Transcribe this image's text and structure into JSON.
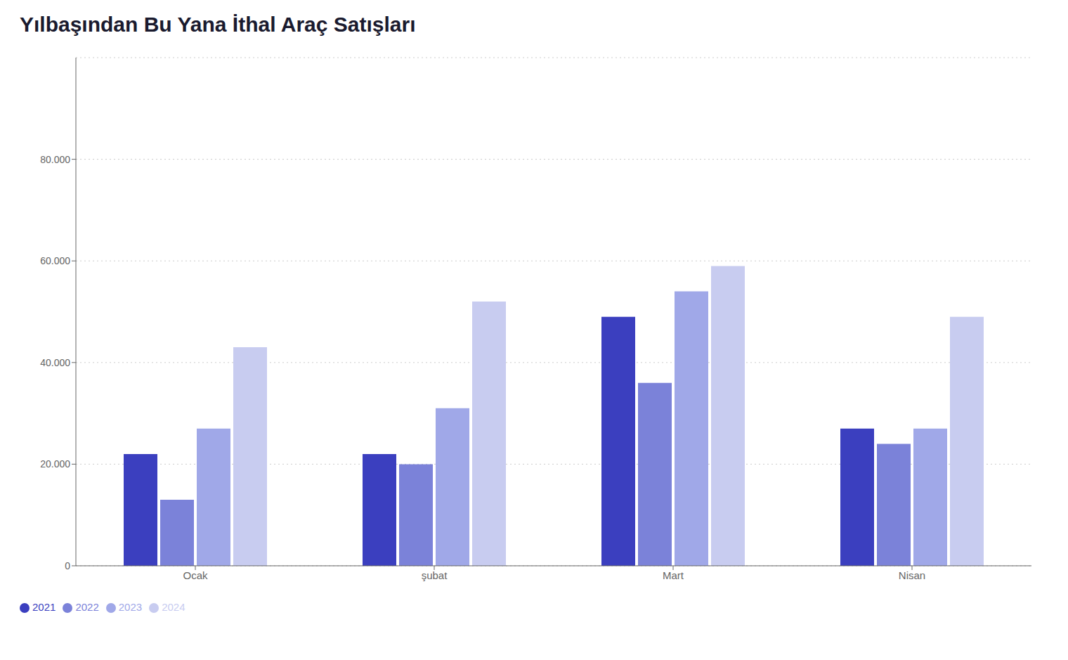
{
  "chart_data": {
    "type": "bar",
    "title": "Yılbaşından Bu Yana İthal Araç Satışları",
    "categories": [
      "Ocak",
      "şubat",
      "Mart",
      "Nisan"
    ],
    "series": [
      {
        "name": "2021",
        "color": "#3B3FBF",
        "values": [
          22000,
          22000,
          49000,
          27000
        ]
      },
      {
        "name": "2022",
        "color": "#7B82D9",
        "values": [
          13000,
          20000,
          36000,
          24000
        ]
      },
      {
        "name": "2023",
        "color": "#A0A8E8",
        "values": [
          27000,
          31000,
          54000,
          27000
        ]
      },
      {
        "name": "2024",
        "color": "#C8CCF0",
        "values": [
          43000,
          52000,
          59000,
          49000
        ]
      }
    ],
    "ylim": [
      0,
      100000
    ],
    "yticks": [
      0,
      {
        "value": 20000,
        "label": "20.000"
      },
      {
        "value": 40000,
        "label": "40.000"
      },
      {
        "value": 60000,
        "label": "60.000"
      },
      {
        "value": 80000,
        "label": "80.000"
      }
    ],
    "grid": true,
    "legend": "lower left"
  }
}
